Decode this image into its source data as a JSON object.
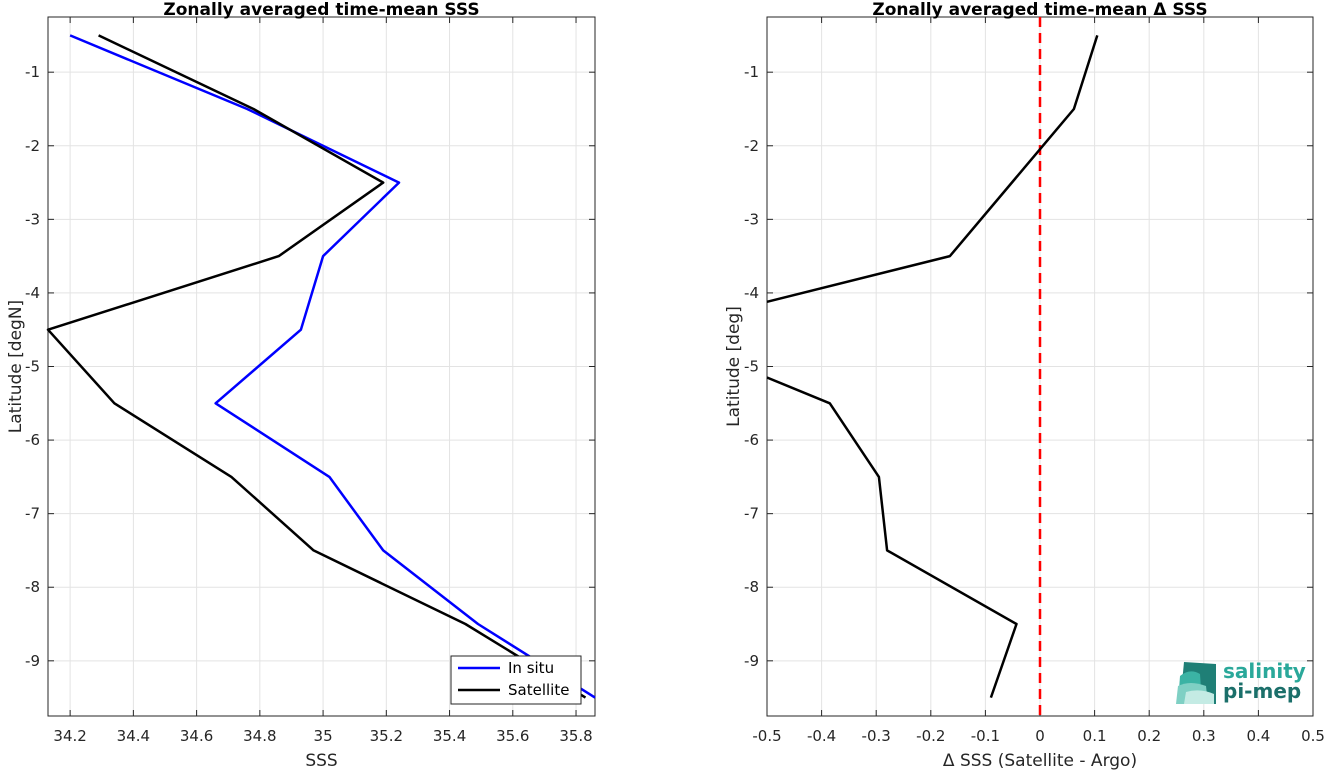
{
  "chart_data": [
    {
      "type": "line",
      "title": "Zonally averaged time-mean SSS",
      "xlabel": "SSS",
      "ylabel": "Latitude [degN]",
      "xlim": [
        34.13,
        35.86
      ],
      "ylim": [
        -9.75,
        -0.25
      ],
      "xticks": [
        34.2,
        34.4,
        34.6,
        34.8,
        35,
        35.2,
        35.4,
        35.6,
        35.8
      ],
      "xtick_labels": [
        "34.2",
        "34.4",
        "34.6",
        "34.8",
        "35",
        "35.2",
        "35.4",
        "35.6",
        "35.8"
      ],
      "yticks": [
        -1,
        -2,
        -3,
        -4,
        -5,
        -6,
        -7,
        -8,
        -9
      ],
      "ytick_labels": [
        "-1",
        "-2",
        "-3",
        "-4",
        "-5",
        "-6",
        "-7",
        "-8",
        "-9"
      ],
      "grid": true,
      "legend_position": "bottom-right",
      "series": [
        {
          "name": "In situ",
          "color": "#0000ff",
          "x": [
            34.2,
            34.76,
            35.24,
            35.0,
            34.93,
            34.66,
            35.02,
            35.19,
            35.49,
            35.86
          ],
          "y": [
            -0.5,
            -1.5,
            -2.5,
            -3.5,
            -4.5,
            -5.5,
            -6.5,
            -7.5,
            -8.5,
            -9.5
          ]
        },
        {
          "name": "Satellite",
          "color": "#000000",
          "x": [
            34.29,
            34.78,
            35.19,
            34.86,
            34.13,
            34.34,
            34.71,
            34.97,
            35.45,
            35.83
          ],
          "y": [
            -0.5,
            -1.5,
            -2.5,
            -3.5,
            -4.5,
            -5.5,
            -6.5,
            -7.5,
            -8.5,
            -9.5
          ]
        }
      ]
    },
    {
      "type": "line",
      "title": "Zonally averaged time-mean Δ SSS",
      "xlabel": "Δ SSS (Satellite - Argo)",
      "ylabel": "Latitude [deg]",
      "xlim": [
        -0.5,
        0.5
      ],
      "ylim": [
        -9.75,
        -0.25
      ],
      "xticks": [
        -0.5,
        -0.4,
        -0.3,
        -0.2,
        -0.1,
        0,
        0.1,
        0.2,
        0.3,
        0.4,
        0.5
      ],
      "xtick_labels": [
        "-0.5",
        "-0.4",
        "-0.3",
        "-0.2",
        "-0.1",
        "0",
        "0.1",
        "0.2",
        "0.3",
        "0.4",
        "0.5"
      ],
      "yticks": [
        -1,
        -2,
        -3,
        -4,
        -5,
        -6,
        -7,
        -8,
        -9
      ],
      "ytick_labels": [
        "-1",
        "-2",
        "-3",
        "-4",
        "-5",
        "-6",
        "-7",
        "-8",
        "-9"
      ],
      "grid": true,
      "reference_line": {
        "x": 0,
        "color": "#ff0000",
        "style": "dashed"
      },
      "series": [
        {
          "color": "#000000",
          "x": [
            0.105,
            0.062,
            -0.165,
            -0.5
          ],
          "y": [
            -0.5,
            -1.5,
            -3.5,
            -4.12
          ]
        },
        {
          "color": "#000000",
          "x": [
            -0.5,
            -0.385,
            -0.295,
            -0.28,
            -0.043,
            -0.09
          ],
          "y": [
            -5.15,
            -5.5,
            -6.5,
            -7.5,
            -8.5,
            -9.5
          ]
        }
      ]
    }
  ],
  "logo": {
    "line1": "salinity",
    "line2": "pi-mep"
  }
}
